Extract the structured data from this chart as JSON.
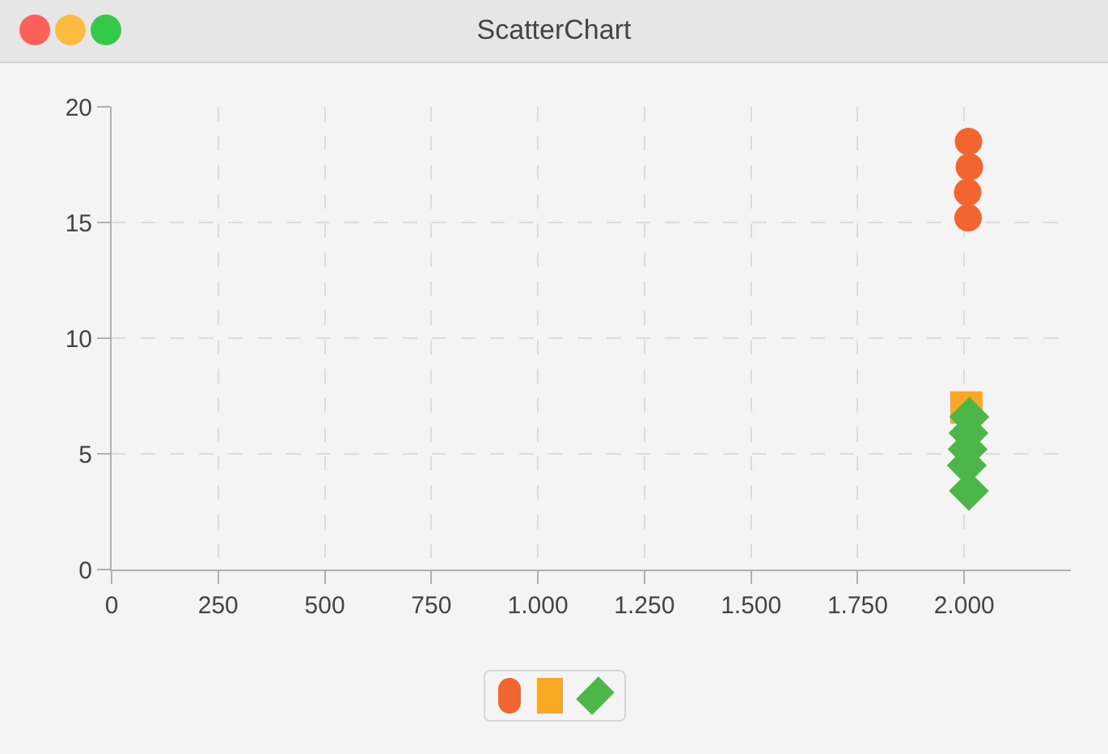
{
  "chart_data": {
    "type": "scatter",
    "title": "ScatterChart",
    "series": [
      {
        "color": "#f26430",
        "marker": "circle",
        "x": [
          2010,
          2012,
          2008,
          2009
        ],
        "values": [
          18.5,
          17.4,
          16.3,
          15.2
        ]
      },
      {
        "color": "#f9a825",
        "marker": "square",
        "x": [
          2005
        ],
        "values": [
          7.0
        ]
      },
      {
        "color": "#4cb648",
        "marker": "diamond",
        "x": [
          2012,
          2010,
          2008,
          2006,
          2011
        ],
        "values": [
          6.6,
          5.9,
          5.2,
          4.5,
          3.4
        ]
      }
    ],
    "xlim": [
      0,
      2250
    ],
    "ylim": [
      0,
      20
    ],
    "xticks": [
      0,
      250,
      500,
      750,
      {
        "value": 1000,
        "label": "1.000"
      },
      {
        "value": 1250,
        "label": "1.250"
      },
      {
        "value": 1500,
        "label": "1.500"
      },
      {
        "value": 1750,
        "label": "1.750"
      },
      {
        "value": 2000,
        "label": "2.000"
      }
    ],
    "yticks": [
      0,
      5,
      10,
      15,
      20
    ],
    "grid": true
  }
}
